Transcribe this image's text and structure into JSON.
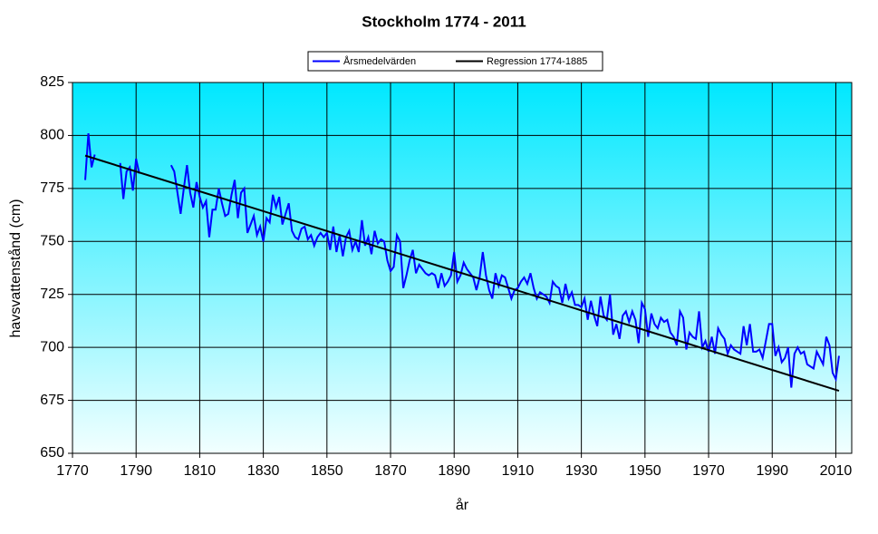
{
  "chart_data": {
    "type": "line",
    "title": "Stockholm 1774 - 2011",
    "x_label": "år",
    "y_label": "havsvattenstånd (cm)",
    "xlim": [
      1770,
      2015
    ],
    "xticks": [
      1770,
      1790,
      1810,
      1830,
      1850,
      1870,
      1890,
      1910,
      1930,
      1950,
      1970,
      1990,
      2010
    ],
    "ylim": [
      650,
      825
    ],
    "yticks": [
      650,
      675,
      700,
      725,
      750,
      775,
      800,
      825
    ],
    "grid": true,
    "legend": "top",
    "series": [
      {
        "name": "Årsmedelvärden",
        "color": "#0000ff",
        "x": [
          1774,
          1775,
          1776,
          1777,
          1778,
          1779,
          1780,
          1781,
          1782,
          1783,
          1784,
          1785,
          1786,
          1787,
          1788,
          1789,
          1790,
          1791,
          1792,
          1793,
          1794,
          1795,
          1796,
          1797,
          1798,
          1799,
          1800,
          1801,
          1802,
          1803,
          1804,
          1805,
          1806,
          1807,
          1808,
          1809,
          1810,
          1811,
          1812,
          1813,
          1814,
          1815,
          1816,
          1817,
          1818,
          1819,
          1820,
          1821,
          1822,
          1823,
          1824,
          1825,
          1826,
          1827,
          1828,
          1829,
          1830,
          1831,
          1832,
          1833,
          1834,
          1835,
          1836,
          1837,
          1838,
          1839,
          1840,
          1841,
          1842,
          1843,
          1844,
          1845,
          1846,
          1847,
          1848,
          1849,
          1850,
          1851,
          1852,
          1853,
          1854,
          1855,
          1856,
          1857,
          1858,
          1859,
          1860,
          1861,
          1862,
          1863,
          1864,
          1865,
          1866,
          1867,
          1868,
          1869,
          1870,
          1871,
          1872,
          1873,
          1874,
          1875,
          1876,
          1877,
          1878,
          1879,
          1880,
          1881,
          1882,
          1883,
          1884,
          1885,
          1886,
          1887,
          1888,
          1889,
          1890,
          1891,
          1892,
          1893,
          1894,
          1895,
          1896,
          1897,
          1898,
          1899,
          1900,
          1901,
          1902,
          1903,
          1904,
          1905,
          1906,
          1907,
          1908,
          1909,
          1910,
          1911,
          1912,
          1913,
          1914,
          1915,
          1916,
          1917,
          1918,
          1919,
          1920,
          1921,
          1922,
          1923,
          1924,
          1925,
          1926,
          1927,
          1928,
          1929,
          1930,
          1931,
          1932,
          1933,
          1934,
          1935,
          1936,
          1937,
          1938,
          1939,
          1940,
          1941,
          1942,
          1943,
          1944,
          1945,
          1946,
          1947,
          1948,
          1949,
          1950,
          1951,
          1952,
          1953,
          1954,
          1955,
          1956,
          1957,
          1958,
          1959,
          1960,
          1961,
          1962,
          1963,
          1964,
          1965,
          1966,
          1967,
          1968,
          1969,
          1970,
          1971,
          1972,
          1973,
          1974,
          1975,
          1976,
          1977,
          1978,
          1979,
          1980,
          1981,
          1982,
          1983,
          1984,
          1985,
          1986,
          1987,
          1988,
          1989,
          1990,
          1991,
          1992,
          1993,
          1994,
          1995,
          1996,
          1997,
          1998,
          1999,
          2000,
          2001,
          2002,
          2003,
          2004,
          2005,
          2006,
          2007,
          2008,
          2009,
          2010,
          2011
        ],
        "values": [
          779,
          801,
          785,
          791,
          null,
          null,
          null,
          null,
          null,
          null,
          null,
          787,
          770,
          783,
          785,
          774,
          789,
          782,
          null,
          null,
          null,
          null,
          null,
          null,
          null,
          null,
          null,
          786,
          783,
          773,
          763,
          775,
          786,
          773,
          766,
          778,
          771,
          766,
          769,
          752,
          765,
          765,
          775,
          768,
          762,
          763,
          772,
          779,
          761,
          773,
          775,
          754,
          758,
          762,
          753,
          757,
          750,
          761,
          759,
          772,
          766,
          771,
          758,
          763,
          768,
          755,
          752,
          751,
          756,
          757,
          751,
          753,
          748,
          752,
          754,
          752,
          754,
          746,
          757,
          745,
          753,
          743,
          752,
          755,
          746,
          750,
          745,
          760,
          748,
          752,
          744,
          755,
          749,
          751,
          750,
          741,
          736,
          738,
          753,
          750,
          728,
          734,
          741,
          746,
          735,
          739,
          737,
          735,
          734,
          735,
          734,
          728,
          735,
          729,
          731,
          734,
          745,
          731,
          734,
          740,
          737,
          735,
          733,
          727,
          733,
          745,
          734,
          727,
          723,
          735,
          729,
          734,
          733,
          728,
          723,
          727,
          728,
          731,
          733,
          730,
          735,
          728,
          723,
          726,
          725,
          724,
          721,
          731,
          729,
          728,
          721,
          730,
          723,
          726,
          720,
          720,
          719,
          723,
          713,
          722,
          715,
          710,
          724,
          715,
          713,
          725,
          706,
          711,
          704,
          715,
          717,
          712,
          717,
          713,
          702,
          721,
          718,
          705,
          716,
          711,
          709,
          714,
          712,
          713,
          707,
          705,
          701,
          717,
          714,
          699,
          707,
          705,
          704,
          717,
          700,
          703,
          698,
          705,
          697,
          709,
          706,
          704,
          697,
          701,
          699,
          698,
          697,
          710,
          701,
          711,
          698,
          698,
          699,
          695,
          703,
          711,
          711,
          696,
          700,
          693,
          695,
          700,
          681,
          697,
          700,
          697,
          698,
          692,
          691,
          690,
          698,
          695,
          692,
          705,
          701,
          688,
          685,
          696
        ]
      },
      {
        "name": "Regression 1774-1885",
        "color": "#000000",
        "x": [
          1774,
          2011
        ],
        "values": [
          790.5,
          679.5
        ]
      }
    ]
  }
}
